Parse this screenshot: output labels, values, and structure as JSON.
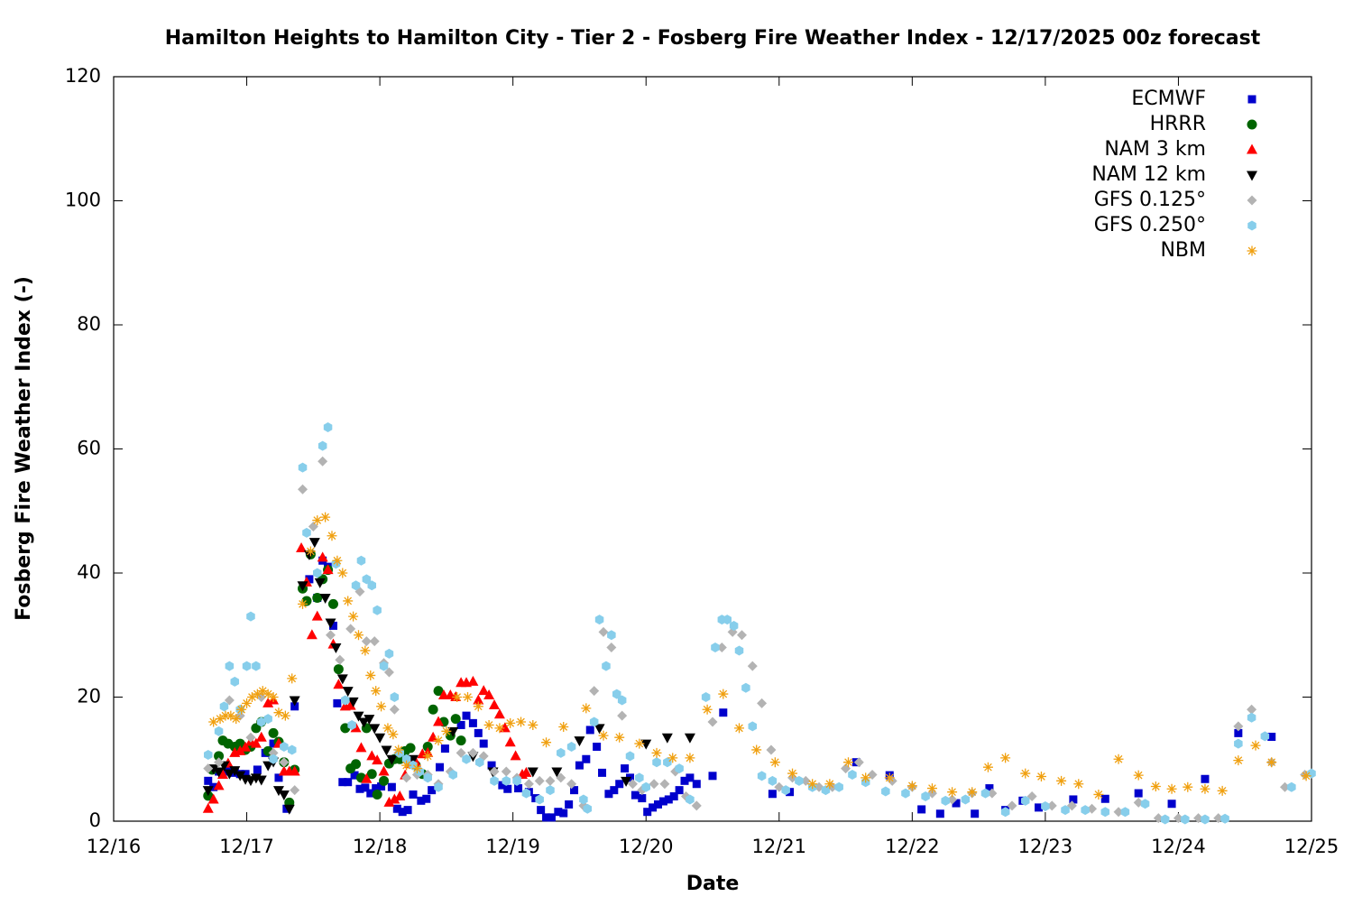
{
  "chart_data": {
    "type": "scatter",
    "title": "Hamilton Heights to Hamilton City - Tier 2 - Fosberg Fire Weather Index - 12/17/2025 00z forecast",
    "x_label": "Date",
    "y_label": "Fosberg Fire Weather Index (-)",
    "xlim": [
      0,
      9
    ],
    "xticks": [
      {
        "value": 0,
        "label": "12/16"
      },
      {
        "value": 1,
        "label": "12/17"
      },
      {
        "value": 2,
        "label": "12/18"
      },
      {
        "value": 3,
        "label": "12/19"
      },
      {
        "value": 4,
        "label": "12/20"
      },
      {
        "value": 5,
        "label": "12/21"
      },
      {
        "value": 6,
        "label": "12/22"
      },
      {
        "value": 7,
        "label": "12/23"
      },
      {
        "value": 8,
        "label": "12/24"
      },
      {
        "value": 9,
        "label": "12/25"
      }
    ],
    "ylim": [
      0,
      120
    ],
    "yticks": [
      0,
      20,
      40,
      60,
      80,
      100,
      120
    ],
    "grid": false,
    "legend": "top-right",
    "series": [
      {
        "name": "ECMWF",
        "color": "#0000cc",
        "marker": "square",
        "x": [
          0.71,
          0.75,
          0.79,
          0.83,
          0.87,
          0.91,
          0.95,
          0.99,
          1.08,
          1.14,
          1.2,
          1.24,
          1.3,
          1.36,
          1.47,
          1.53,
          1.57,
          1.61,
          1.65,
          1.68,
          1.72,
          1.76,
          1.81,
          1.85,
          1.89,
          1.93,
          1.97,
          2.01,
          2.09,
          2.13,
          2.17,
          2.21,
          2.25,
          2.31,
          2.35,
          2.39,
          2.45,
          2.49,
          2.53,
          2.61,
          2.65,
          2.7,
          2.74,
          2.78,
          2.84,
          2.92,
          2.96,
          3.04,
          3.12,
          3.17,
          3.21,
          3.25,
          3.29,
          3.34,
          3.38,
          3.42,
          3.46,
          3.5,
          3.55,
          3.58,
          3.63,
          3.67,
          3.72,
          3.76,
          3.8,
          3.84,
          3.88,
          3.92,
          3.97,
          4.01,
          4.05,
          4.09,
          4.13,
          4.17,
          4.21,
          4.25,
          4.29,
          4.33,
          4.38,
          4.5,
          4.58,
          4.95,
          5.08,
          5.58,
          5.83,
          6.07,
          6.21,
          6.33,
          6.47,
          6.58,
          6.7,
          6.83,
          6.95,
          7.21,
          7.45,
          7.7,
          7.95,
          8.2,
          8.45,
          8.7
        ],
        "values": [
          6.5,
          5.5,
          8,
          8,
          8,
          7.8,
          7.6,
          7.6,
          8.3,
          11,
          12.5,
          7,
          2,
          18.5,
          39,
          36,
          42,
          41,
          31.5,
          19,
          6.3,
          6.3,
          7.4,
          5.2,
          5.4,
          4.5,
          5.3,
          5.6,
          5.5,
          2,
          1.5,
          1.8,
          4.3,
          3.3,
          3.6,
          5,
          8.7,
          11.7,
          14,
          15.5,
          17,
          15.8,
          14.2,
          12.5,
          9,
          5.8,
          5.2,
          5.3,
          4.7,
          3.7,
          1.8,
          0.6,
          0.6,
          1.5,
          1.3,
          2.7,
          5,
          9,
          10,
          14.7,
          12,
          7.8,
          4.4,
          5,
          6,
          8.5,
          7,
          4.2,
          3.7,
          1.5,
          2.2,
          2.7,
          3.2,
          3.5,
          4,
          5,
          6.5,
          7,
          6,
          7.3,
          17.5,
          4.4,
          4.7,
          9.5,
          7.4,
          1.9,
          1.2,
          2.9,
          1.2,
          5.3,
          1.8,
          3.3,
          2.2,
          3.5,
          3.6,
          4.5,
          2.8,
          6.8,
          14.2,
          13.6
        ]
      },
      {
        "name": "HRRR",
        "color": "#006400",
        "marker": "circle",
        "x": [
          0.71,
          0.74,
          0.79,
          0.82,
          0.86,
          0.91,
          0.95,
          0.99,
          1.03,
          1.07,
          1.11,
          1.16,
          1.2,
          1.24,
          1.28,
          1.32,
          1.36,
          1.42,
          1.45,
          1.48,
          1.53,
          1.57,
          1.61,
          1.65,
          1.69,
          1.74,
          1.78,
          1.82,
          1.86,
          1.9,
          1.94,
          1.98,
          2.03,
          2.07,
          2.11,
          2.15,
          2.19,
          2.23,
          2.27,
          2.32,
          2.36,
          2.4,
          2.44,
          2.48,
          2.53,
          2.57,
          2.61
        ],
        "values": [
          4.1,
          8.3,
          10.5,
          13,
          12.5,
          12,
          12.5,
          11.5,
          12,
          15,
          16,
          11.3,
          14.2,
          12.8,
          9.5,
          3,
          8.3,
          37.5,
          35.5,
          43,
          36,
          39,
          40.5,
          35,
          24.5,
          15,
          8.5,
          9.2,
          7,
          15,
          7.6,
          4.3,
          6.5,
          9.3,
          10,
          10,
          11.3,
          11.8,
          9,
          7.6,
          12,
          18,
          21,
          16,
          13.8,
          16.5,
          13
        ]
      },
      {
        "name": "NAM 3 km",
        "color": "#ff0000",
        "marker": "triangle-up",
        "x": [
          0.71,
          0.75,
          0.79,
          0.82,
          0.86,
          0.91,
          0.95,
          0.99,
          1.03,
          1.07,
          1.11,
          1.16,
          1.2,
          1.24,
          1.28,
          1.32,
          1.36,
          1.41,
          1.45,
          1.49,
          1.53,
          1.57,
          1.61,
          1.65,
          1.69,
          1.74,
          1.78,
          1.82,
          1.86,
          1.9,
          1.94,
          1.98,
          2.03,
          2.07,
          2.11,
          2.15,
          2.19,
          2.23,
          2.27,
          2.32,
          2.36,
          2.4,
          2.44,
          2.48,
          2.53,
          2.57,
          2.61,
          2.65,
          2.7,
          2.74,
          2.78,
          2.82,
          2.86,
          2.9,
          2.94,
          2.98,
          3.02,
          3.07,
          3.1
        ],
        "values": [
          2,
          3.5,
          5.7,
          7.5,
          9.3,
          11,
          11.3,
          11.9,
          12.8,
          12.5,
          13.5,
          19,
          19.5,
          12.5,
          8,
          8,
          8,
          44,
          38.5,
          30,
          33,
          42.5,
          40.5,
          28.5,
          22,
          18.5,
          18.6,
          15,
          11.8,
          6.8,
          10.5,
          9.8,
          8,
          3,
          3.5,
          4,
          7.4,
          9.2,
          9.5,
          10.8,
          11,
          13.5,
          16,
          20.3,
          20.3,
          20,
          22.3,
          22.3,
          22.5,
          19.5,
          21,
          20.3,
          18.7,
          17.2,
          15,
          12.7,
          10.5,
          7.5,
          7.8
        ]
      },
      {
        "name": "NAM 12 km",
        "color": "#000000",
        "marker": "triangle-down",
        "x": [
          0.71,
          0.75,
          0.79,
          0.83,
          0.87,
          0.91,
          0.95,
          0.99,
          1.03,
          1.07,
          1.11,
          1.16,
          1.2,
          1.24,
          1.28,
          1.32,
          1.36,
          1.42,
          1.47,
          1.51,
          1.55,
          1.59,
          1.63,
          1.67,
          1.72,
          1.76,
          1.8,
          1.84,
          1.88,
          1.92,
          1.96,
          2.0,
          2.05,
          2.09,
          2.25,
          2.55,
          2.7,
          2.85,
          3.15,
          3.33,
          3.5,
          3.65,
          3.85,
          4.0,
          4.16,
          4.33
        ],
        "values": [
          5,
          8.5,
          8,
          9,
          7.7,
          8.2,
          7.4,
          6.8,
          6.6,
          7,
          6.7,
          9,
          9.6,
          5,
          4.3,
          2,
          19.5,
          38,
          43,
          45,
          38.5,
          36,
          32,
          28,
          23,
          21,
          19.3,
          17,
          16,
          16.5,
          15,
          13.5,
          11.5,
          10,
          10,
          14.5,
          10.5,
          8,
          8,
          8,
          13,
          15,
          6.5,
          12.5,
          13.5,
          13.5
        ]
      },
      {
        "name": "GFS 0.125°",
        "color": "#b3b3b3",
        "marker": "diamond",
        "x": [
          0.71,
          0.79,
          0.87,
          0.95,
          1.03,
          1.11,
          1.2,
          1.28,
          1.36,
          1.42,
          1.5,
          1.57,
          1.63,
          1.7,
          1.78,
          1.85,
          1.9,
          1.96,
          2.03,
          2.07,
          2.11,
          2.14,
          2.2,
          2.28,
          2.36,
          2.44,
          2.53,
          2.61,
          2.7,
          2.78,
          2.86,
          2.95,
          3.03,
          3.12,
          3.2,
          3.28,
          3.36,
          3.44,
          3.53,
          3.61,
          3.68,
          3.74,
          3.82,
          3.9,
          3.97,
          4.06,
          4.14,
          4.22,
          4.3,
          4.38,
          4.5,
          4.57,
          4.65,
          4.72,
          4.8,
          4.87,
          4.94,
          5.0,
          5.1,
          5.2,
          5.3,
          5.4,
          5.5,
          5.6,
          5.7,
          5.85,
          6.0,
          6.15,
          6.3,
          6.45,
          6.6,
          6.75,
          6.9,
          7.05,
          7.2,
          7.35,
          7.55,
          7.7,
          7.85,
          8.0,
          8.15,
          8.3,
          8.45,
          8.55,
          8.7,
          8.8,
          8.95
        ],
        "values": [
          8.5,
          9.5,
          19.5,
          17,
          13.5,
          20,
          11,
          9.5,
          5,
          53.5,
          47.5,
          58,
          30,
          26,
          31,
          37,
          29,
          29,
          25.5,
          24,
          18,
          11,
          7,
          7.5,
          7.5,
          6,
          8,
          11,
          11,
          10.5,
          8,
          8,
          7,
          6,
          6.5,
          6.5,
          7,
          6,
          2.5,
          21,
          30.5,
          28,
          17,
          6,
          5,
          6,
          6,
          8,
          4,
          2.5,
          16,
          28,
          30.5,
          30,
          25,
          19,
          11.5,
          5.5,
          7,
          6.5,
          5.5,
          5.5,
          8.5,
          9.5,
          7.5,
          6.5,
          5.5,
          4.5,
          3.5,
          4.5,
          4.5,
          2.5,
          4,
          2.5,
          2.5,
          2,
          1.5,
          3,
          0.5,
          0.5,
          0.5,
          0.5,
          15.3,
          18,
          9.5,
          5.5,
          7.5
        ]
      },
      {
        "name": "GFS 0.250°",
        "color": "#87ceeb",
        "marker": "hexagon",
        "x": [
          0.71,
          0.79,
          0.83,
          0.87,
          0.91,
          0.95,
          1.0,
          1.03,
          1.07,
          1.11,
          1.16,
          1.2,
          1.28,
          1.34,
          1.42,
          1.45,
          1.53,
          1.57,
          1.61,
          1.67,
          1.74,
          1.79,
          1.82,
          1.86,
          1.9,
          1.94,
          1.98,
          2.03,
          2.07,
          2.11,
          2.15,
          2.2,
          2.25,
          2.3,
          2.36,
          2.44,
          2.55,
          2.65,
          2.75,
          2.86,
          2.95,
          3.03,
          3.1,
          3.2,
          3.28,
          3.36,
          3.44,
          3.53,
          3.56,
          3.61,
          3.65,
          3.7,
          3.74,
          3.78,
          3.82,
          3.88,
          3.95,
          4.0,
          4.08,
          4.16,
          4.25,
          4.33,
          4.45,
          4.52,
          4.57,
          4.61,
          4.66,
          4.7,
          4.75,
          4.8,
          4.87,
          4.95,
          5.05,
          5.15,
          5.25,
          5.35,
          5.45,
          5.55,
          5.65,
          5.8,
          5.95,
          6.1,
          6.25,
          6.4,
          6.55,
          6.7,
          6.85,
          7.0,
          7.15,
          7.3,
          7.45,
          7.6,
          7.75,
          7.9,
          8.05,
          8.2,
          8.35,
          8.45,
          8.55,
          8.65,
          8.85,
          9.0
        ],
        "values": [
          10.7,
          14.5,
          18.5,
          25,
          22.5,
          18,
          25,
          33,
          25,
          16,
          16.5,
          10,
          12,
          11.5,
          57,
          46.5,
          40,
          60.5,
          63.5,
          41.5,
          19.5,
          15.5,
          38,
          42,
          39,
          38,
          34,
          25,
          27,
          20,
          11,
          10,
          9,
          8,
          7,
          5.5,
          7.5,
          10,
          9.5,
          6.5,
          6.5,
          6.5,
          4.5,
          3.5,
          5,
          11,
          12,
          3.5,
          2,
          16,
          32.5,
          25,
          30,
          20.5,
          19.5,
          10.5,
          7,
          5.5,
          9.5,
          9.5,
          8.5,
          3.5,
          20,
          28,
          32.5,
          32.5,
          31.5,
          27.5,
          21.5,
          15.3,
          7.3,
          6.5,
          5,
          6.5,
          5.5,
          5,
          5.5,
          7.5,
          6.3,
          4.8,
          4.5,
          4,
          3.3,
          3.5,
          4.5,
          1.5,
          3.3,
          2.4,
          1.8,
          1.8,
          1.5,
          1.5,
          2.8,
          0.3,
          0.3,
          0.3,
          0.4,
          12.5,
          16.7,
          13.7,
          5.5,
          7.7
        ]
      },
      {
        "name": "NBM",
        "color": "#f0a010",
        "marker": "asterisk",
        "x": [
          0.75,
          0.8,
          0.84,
          0.88,
          0.92,
          0.96,
          1.0,
          1.04,
          1.08,
          1.12,
          1.16,
          1.2,
          1.24,
          1.29,
          1.34,
          1.42,
          1.48,
          1.53,
          1.59,
          1.64,
          1.68,
          1.72,
          1.76,
          1.8,
          1.84,
          1.89,
          1.93,
          1.97,
          2.01,
          2.06,
          2.1,
          2.14,
          2.2,
          2.28,
          2.36,
          2.44,
          2.5,
          2.58,
          2.66,
          2.74,
          2.82,
          2.9,
          2.98,
          3.06,
          3.15,
          3.25,
          3.38,
          3.55,
          3.68,
          3.8,
          3.95,
          4.08,
          4.2,
          4.33,
          4.46,
          4.58,
          4.7,
          4.83,
          4.97,
          5.1,
          5.25,
          5.38,
          5.52,
          5.65,
          5.83,
          6.0,
          6.15,
          6.3,
          6.45,
          6.57,
          6.7,
          6.85,
          6.97,
          7.12,
          7.25,
          7.4,
          7.55,
          7.7,
          7.83,
          7.95,
          8.07,
          8.2,
          8.33,
          8.45,
          8.58,
          8.7,
          8.96
        ],
        "values": [
          16,
          16.5,
          17,
          17,
          16.5,
          18,
          19,
          20,
          20.5,
          21,
          20.5,
          20,
          17.5,
          17,
          23,
          35,
          43.5,
          48.5,
          49,
          46,
          42,
          40,
          35.5,
          33,
          30,
          27.5,
          23.5,
          21,
          18.5,
          15,
          14,
          11.5,
          9,
          8.5,
          10.5,
          13,
          14.5,
          20,
          20,
          18.5,
          15.5,
          15,
          15.8,
          16,
          15.5,
          12.7,
          15.2,
          18.2,
          13.8,
          13.5,
          12.5,
          11,
          10.2,
          10.2,
          18,
          20.5,
          15,
          11.5,
          9.5,
          7.7,
          6,
          6,
          9.5,
          7,
          7,
          5.7,
          5.3,
          4.7,
          4.7,
          8.7,
          10.2,
          7.7,
          7.2,
          6.5,
          6,
          4.3,
          10,
          7.4,
          5.6,
          5.2,
          5.5,
          5.2,
          4.9,
          9.8,
          12.2,
          9.5,
          7.3
        ]
      }
    ]
  }
}
